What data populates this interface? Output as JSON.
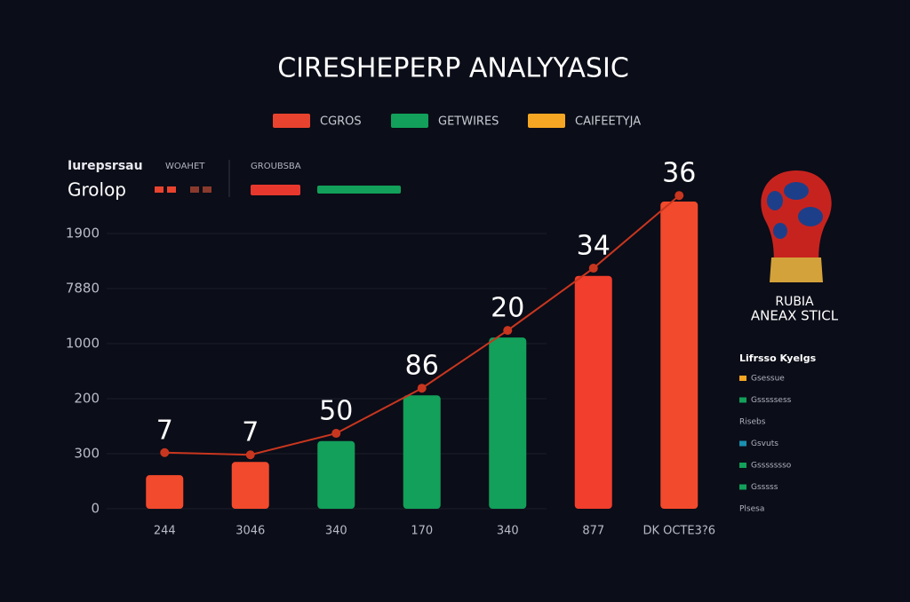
{
  "chart_data": {
    "type": "bar",
    "title": "CIRESHEPERP ANALYYASIC",
    "legend": [
      {
        "name": "CGROS",
        "color": "#e8432e"
      },
      {
        "name": "GETWIRES",
        "color": "#12a05a"
      },
      {
        "name": "CAIFEETYJA",
        "color": "#f5a623"
      }
    ],
    "header_labels": [
      "Iurepsrsau",
      "Grolop",
      "WOAHET",
      "GROUBSBA"
    ],
    "categories": [
      "244",
      "3046",
      "340",
      "170",
      "340",
      "877",
      "DK OCTE3?6"
    ],
    "values": [
      0.61,
      0.85,
      1.23,
      2.06,
      3.11,
      4.23,
      5.58
    ],
    "colors": [
      "#f24a2c",
      "#f24a2c",
      "#12a05a",
      "#12a05a",
      "#12a05a",
      "#f23e2c",
      "#f24a2c"
    ],
    "line": {
      "color": "#c9361f",
      "values": [
        1.02,
        0.98,
        1.37,
        2.19,
        3.24,
        4.37,
        5.69
      ]
    },
    "annotations": [
      "7",
      "7",
      "50",
      "86",
      "20",
      "34",
      "36"
    ],
    "ylim": [
      0,
      6
    ],
    "yticks": [
      {
        "value": 0,
        "label": "0"
      },
      {
        "value": 1,
        "label": "300"
      },
      {
        "value": 2,
        "label": "200"
      },
      {
        "value": 3,
        "label": "1000"
      },
      {
        "value": 4,
        "label": "7880"
      },
      {
        "value": 5,
        "label": "1900"
      }
    ],
    "grid": true,
    "side_panel": {
      "logo_title": "RUBIA",
      "logo_subtitle": "ANEAX STICL",
      "list_title": "Lifrsso Kyelgs",
      "items": [
        {
          "label": "Gsessue",
          "color": "#f5a623"
        },
        {
          "label": "Gsssssess",
          "color": "#12a05a"
        },
        {
          "label": "Risebs",
          "color": null
        },
        {
          "label": "Gsvuts",
          "color": "#1a8fb0"
        },
        {
          "label": "Gssssssso",
          "color": "#12a05a"
        },
        {
          "label": "Gsssss",
          "color": "#12a05a"
        },
        {
          "label": "Plsesa",
          "color": null
        }
      ]
    }
  }
}
